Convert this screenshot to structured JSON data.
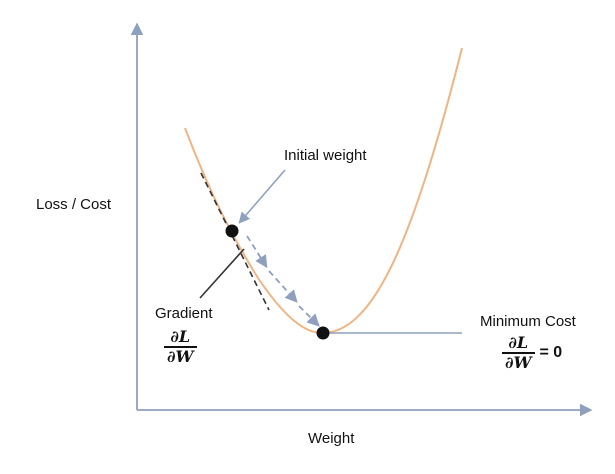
{
  "labels": {
    "y_axis": "Loss / Cost",
    "x_axis": "Weight",
    "initial_weight": "Initial weight",
    "gradient": "Gradient",
    "minimum_cost": "Minimum Cost"
  },
  "formula": {
    "numerator": "∂L",
    "denominator": "∂W",
    "equals": "= 0"
  },
  "colors": {
    "curve": "#f0b483",
    "axis": "#8ea0bd",
    "arrow": "#8ea0bd",
    "point": "#111111",
    "tangent": "#333333"
  }
}
